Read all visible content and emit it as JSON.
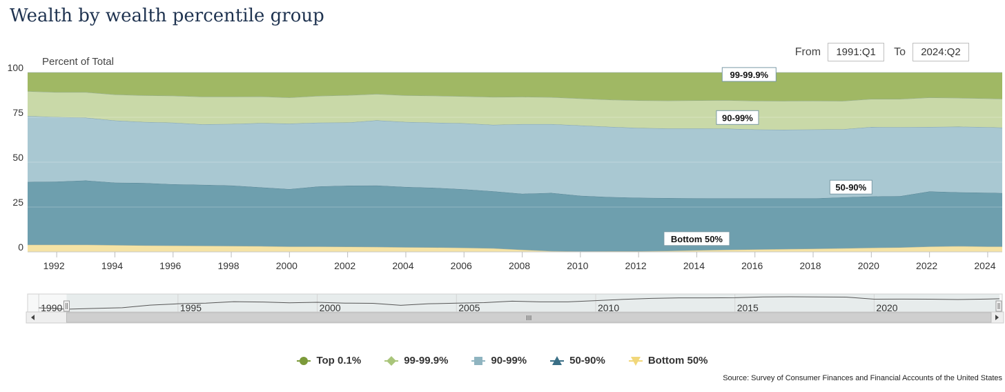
{
  "page": {
    "title": "Wealth by wealth percentile group"
  },
  "range": {
    "from_label": "From",
    "from_value": "1991:Q1",
    "to_label": "To",
    "to_value": "2024:Q2"
  },
  "source": "Source: Survey of Consumer Finances and Financial Accounts of the United States",
  "colors": {
    "top01": "#a0b864",
    "p99_999": "#c9d9a8",
    "p90_99": "#a9c8d2",
    "p50_90": "#6e9fae",
    "bottom50": "#f5e3a5"
  },
  "chart_data": {
    "type": "area",
    "stacked": true,
    "ylabel": "Percent of Total",
    "ylim": [
      0,
      100
    ],
    "y_ticks": [
      0,
      25,
      50,
      75,
      100
    ],
    "x_ticks": [
      "1992",
      "1994",
      "1996",
      "1998",
      "2000",
      "2002",
      "2004",
      "2006",
      "2008",
      "2010",
      "2012",
      "2014",
      "2016",
      "2018",
      "2020",
      "2022",
      "2024"
    ],
    "x": [
      1991.0,
      1992.0,
      1993.0,
      1994.0,
      1995.0,
      1996.0,
      1997.0,
      1998.0,
      1999.0,
      2000.0,
      2001.0,
      2002.0,
      2003.0,
      2004.0,
      2005.0,
      2006.0,
      2007.0,
      2008.0,
      2009.0,
      2010.0,
      2011.0,
      2012.0,
      2013.0,
      2014.0,
      2015.0,
      2016.0,
      2017.0,
      2018.0,
      2019.0,
      2020.0,
      2021.0,
      2022.0,
      2023.0,
      2024.0,
      2024.5
    ],
    "xlim": [
      1991.0,
      2024.5
    ],
    "series": [
      {
        "name": "Bottom 50%",
        "key": "bottom50",
        "values": [
          4.0,
          4.0,
          4.0,
          3.8,
          3.6,
          3.5,
          3.4,
          3.3,
          3.2,
          3.0,
          3.0,
          2.9,
          2.8,
          2.6,
          2.5,
          2.3,
          2.0,
          1.2,
          0.5,
          0.3,
          0.4,
          0.4,
          0.6,
          0.9,
          1.2,
          1.4,
          1.6,
          1.8,
          2.0,
          2.3,
          2.5,
          3.0,
          3.2,
          3.0,
          3.0
        ]
      },
      {
        "name": "50-90%",
        "key": "p50_90",
        "values": [
          35.0,
          35.2,
          35.8,
          34.8,
          34.8,
          34.2,
          34.0,
          33.7,
          32.8,
          32.0,
          33.5,
          34.0,
          34.2,
          33.6,
          33.2,
          32.6,
          31.8,
          31.2,
          32.4,
          31.0,
          30.2,
          29.8,
          29.4,
          29.0,
          28.6,
          28.4,
          28.2,
          28.0,
          28.4,
          28.6,
          28.6,
          30.7,
          30.0,
          30.0,
          29.8
        ]
      },
      {
        "name": "90-99%",
        "key": "p90_99",
        "values": [
          36.7,
          36.0,
          35.0,
          34.6,
          34.0,
          34.3,
          33.7,
          34.3,
          35.8,
          36.5,
          35.5,
          35.2,
          36.3,
          36.2,
          36.3,
          36.8,
          37.0,
          38.8,
          38.3,
          39.2,
          39.1,
          38.9,
          38.8,
          38.9,
          38.9,
          38.4,
          38.3,
          38.4,
          37.9,
          38.7,
          38.4,
          35.9,
          36.6,
          36.5,
          36.5
        ]
      },
      {
        "name": "99-99.9%",
        "key": "p99_999",
        "values": [
          13.8,
          13.8,
          14.2,
          14.5,
          14.8,
          15.0,
          15.4,
          15.2,
          14.8,
          14.5,
          14.9,
          15.2,
          14.7,
          14.8,
          15.0,
          15.0,
          15.5,
          15.2,
          15.0,
          15.0,
          15.1,
          15.3,
          15.5,
          15.6,
          15.8,
          16.0,
          16.0,
          16.0,
          15.8,
          15.6,
          15.7,
          16.4,
          16.0,
          16.0,
          16.0
        ]
      },
      {
        "name": "Top 0.1%",
        "key": "top01",
        "values": [
          10.5,
          11.0,
          11.0,
          12.3,
          12.8,
          13.0,
          13.5,
          13.5,
          13.4,
          14.0,
          13.1,
          12.7,
          12.0,
          12.8,
          13.0,
          13.3,
          13.7,
          13.6,
          13.8,
          14.5,
          15.2,
          15.6,
          15.7,
          15.6,
          15.5,
          15.8,
          15.9,
          15.8,
          15.9,
          14.8,
          14.8,
          14.0,
          14.2,
          14.5,
          14.7
        ]
      }
    ],
    "annotations": [
      {
        "text": "99-99.9%",
        "x": 2015.8,
        "y": 93.5
      },
      {
        "text": "90-99%",
        "x": 2015.4,
        "y": 69.5
      },
      {
        "text": "50-90%",
        "x": 2019.3,
        "y": 30.7
      },
      {
        "text": "Bottom 50%",
        "x": 2014.0,
        "y": 2.0
      }
    ],
    "navigator": {
      "x_ticks": [
        "1990",
        "1995",
        "2000",
        "2005",
        "2010",
        "2015",
        "2020"
      ],
      "handles": "III"
    },
    "legend": {
      "placement": "bottom"
    }
  }
}
